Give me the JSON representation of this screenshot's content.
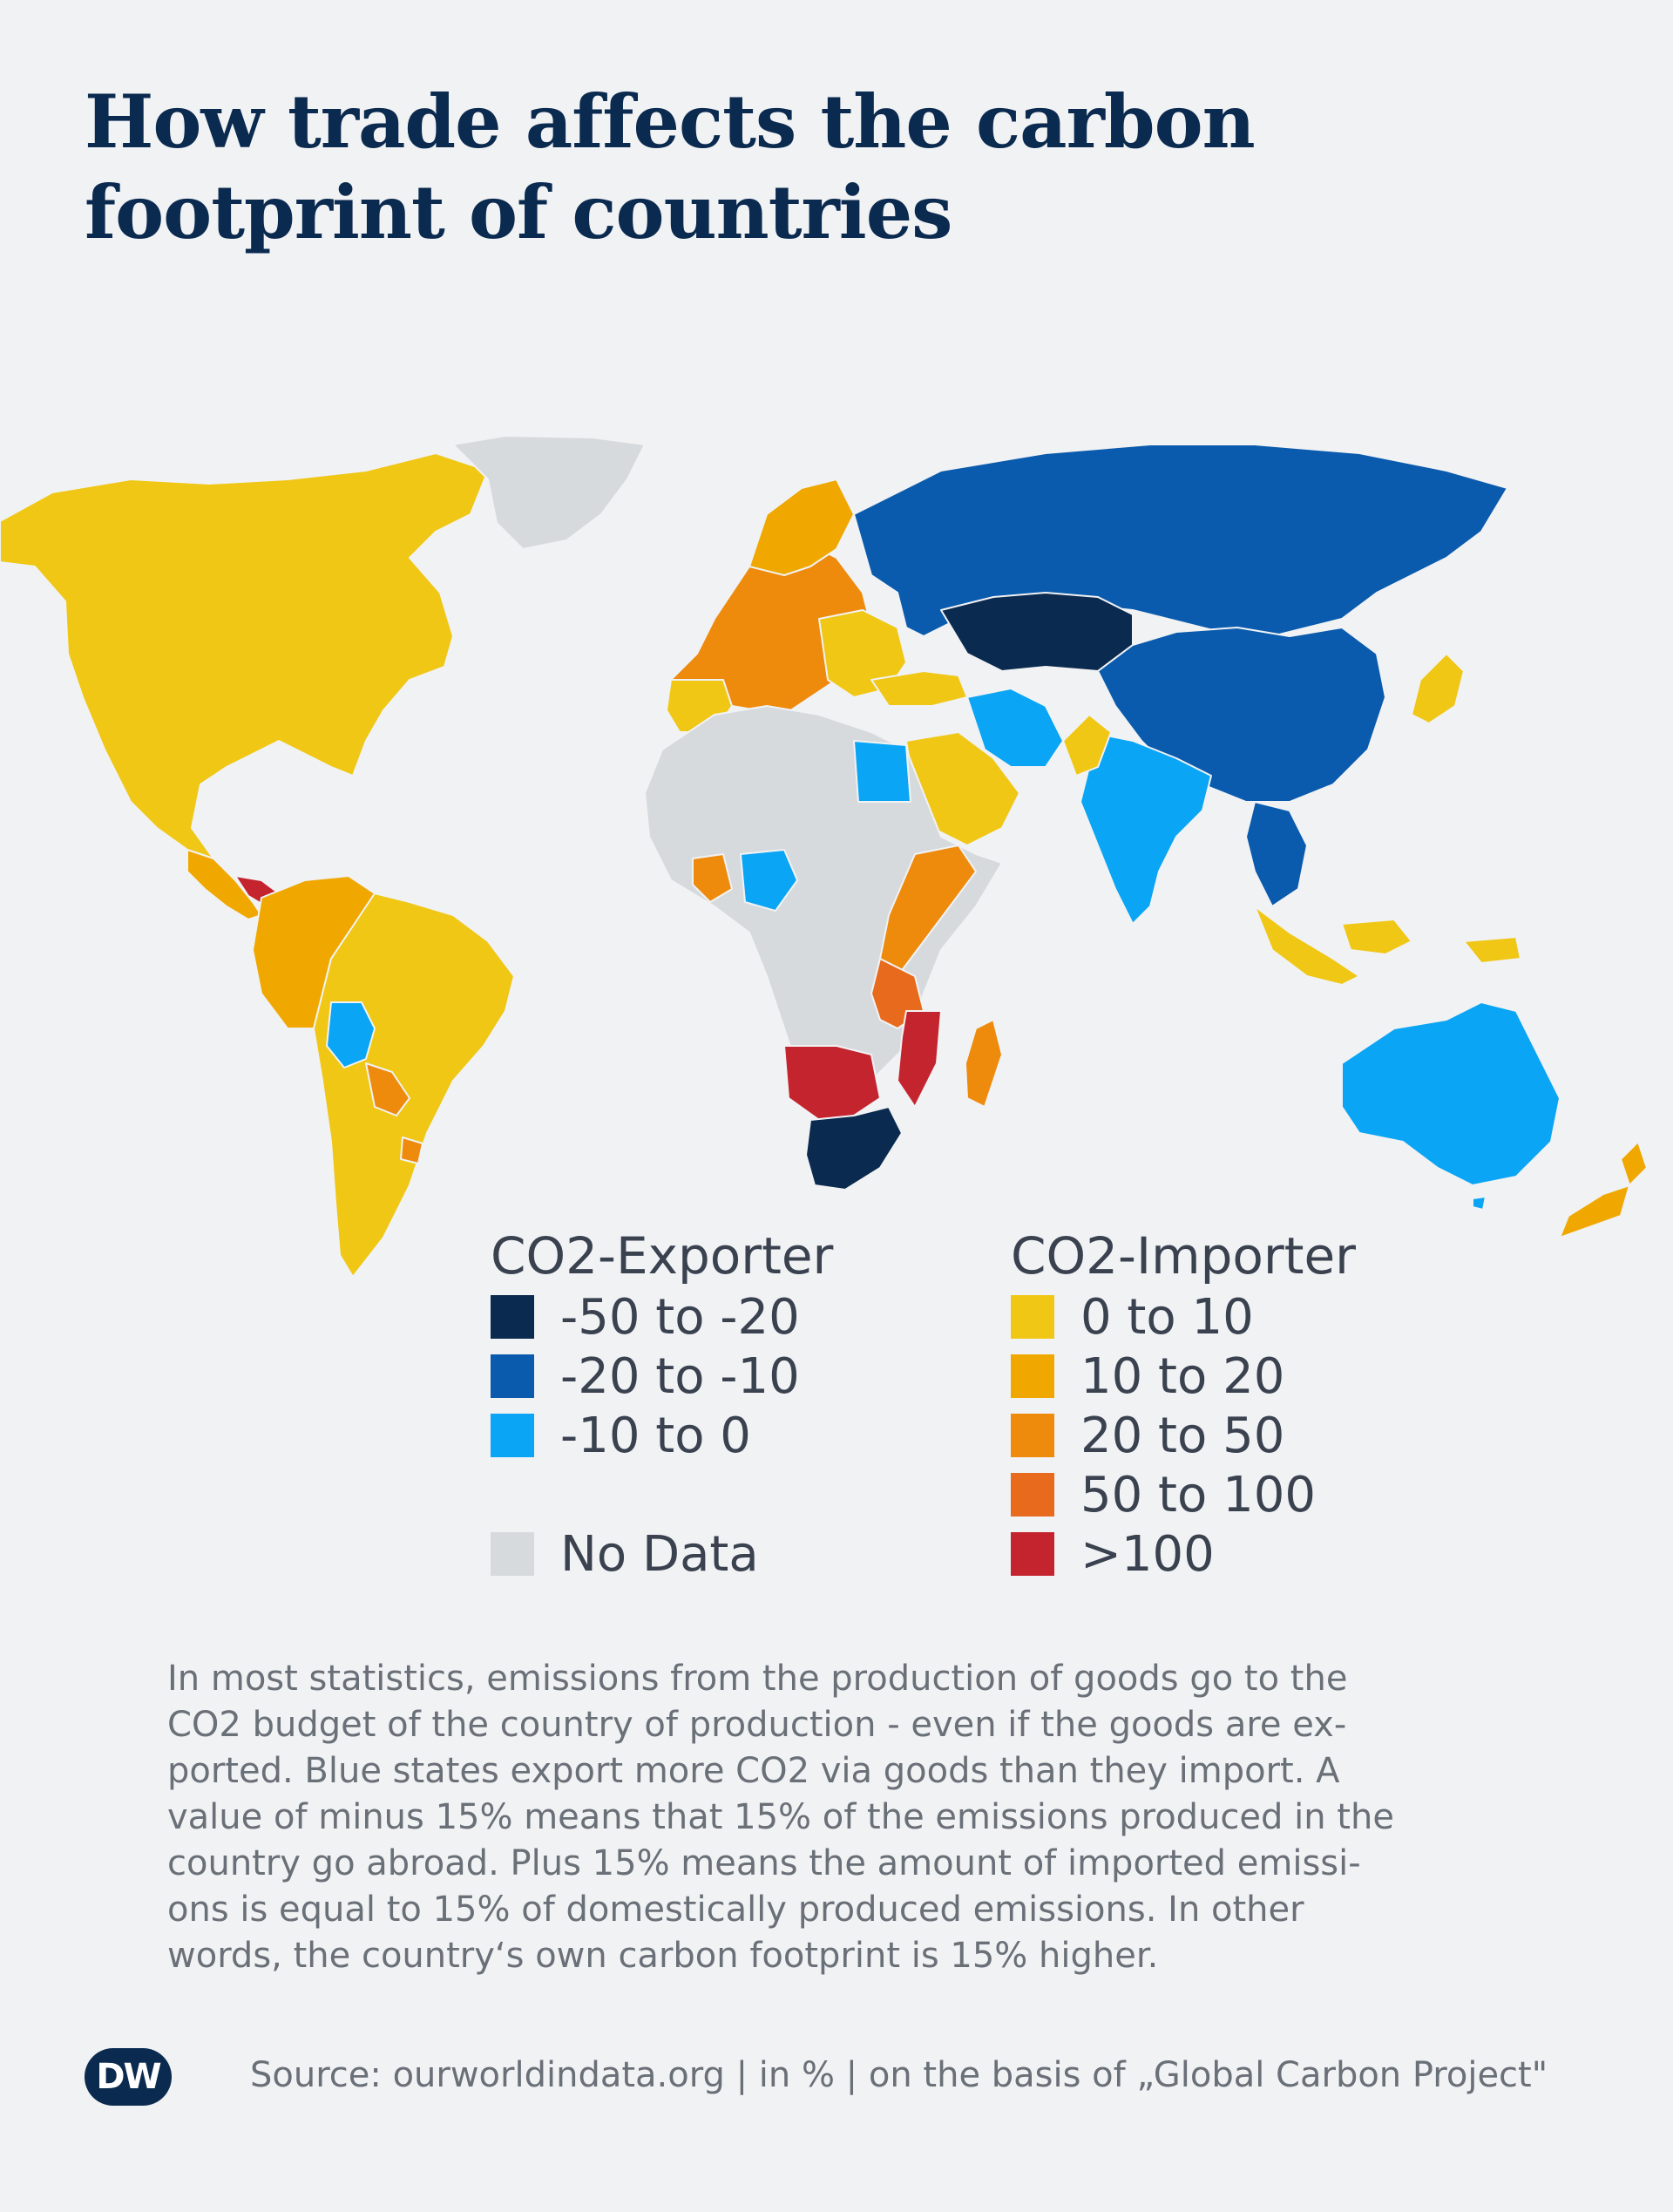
{
  "title": "How trade affects the carbon footprint of countries",
  "legend": {
    "exporter_heading": "CO2-Exporter",
    "importer_heading": "CO2-Importer",
    "exporter_items": [
      {
        "label": "-50 to -20",
        "color": "#0b2a4f"
      },
      {
        "label": "-20 to -10",
        "color": "#0a5bad"
      },
      {
        "label": "-10 to 0",
        "color": "#0aa5f4"
      }
    ],
    "no_data": {
      "label": "No Data",
      "color": "#d7dadd"
    },
    "importer_items": [
      {
        "label": "0 to 10",
        "color": "#f0c715"
      },
      {
        "label": "10 to 20",
        "color": "#f0a800"
      },
      {
        "label": "20 to 50",
        "color": "#ee8a0c"
      },
      {
        "label": "50 to 100",
        "color": "#e86a1c"
      },
      {
        "label": ">100",
        "color": "#c4242e"
      }
    ]
  },
  "note": "In most statistics, emissions from the production of goods go to the\nCO2 budget of the country of production - even if the goods are ex-\nported. Blue states export more CO2 via goods than they import. A\nvalue of minus 15% means that 15% of the emissions produced in the\ncountry go abroad. Plus 15% means the amount of imported emissi-\nons is equal to 15% of domestically produced emissions. In other\nwords, the country‘s own carbon footprint is 15% higher.",
  "footer": {
    "logo_text": "DW",
    "source": "Source: ourworldindata.org | in % | on the basis of „Global Carbon Project\""
  },
  "map": {
    "regions": [
      {
        "name": "North America",
        "category": "0 to 10",
        "color": "#f0c715"
      },
      {
        "name": "Greenland",
        "category": "No Data",
        "color": "#d7dadd"
      },
      {
        "name": "Central America",
        "category": "10 to 20",
        "color": "#f0a800"
      },
      {
        "name": "Panama",
        "category": ">100",
        "color": "#c4242e"
      },
      {
        "name": "Brazil / South America",
        "category": "0 to 10",
        "color": "#f0c715"
      },
      {
        "name": "Colombia / Venezuela / Peru",
        "category": "10 to 20",
        "color": "#f0a800"
      },
      {
        "name": "Bolivia",
        "category": "-10 to 0",
        "color": "#0aa5f4"
      },
      {
        "name": "Paraguay",
        "category": "20 to 50",
        "color": "#ee8a0c"
      },
      {
        "name": "Western Europe",
        "category": "20 to 50",
        "color": "#ee8a0c"
      },
      {
        "name": "Russia",
        "category": "-20 to -10",
        "color": "#0a5bad"
      },
      {
        "name": "Kazakhstan",
        "category": "-50 to -20",
        "color": "#0b2a4f"
      },
      {
        "name": "China",
        "category": "-20 to -10",
        "color": "#0a5bad"
      },
      {
        "name": "India",
        "category": "-10 to 0",
        "color": "#0aa5f4"
      },
      {
        "name": "Iran",
        "category": "-10 to 0",
        "color": "#0aa5f4"
      },
      {
        "name": "Saudi Arabia",
        "category": "0 to 10",
        "color": "#f0c715"
      },
      {
        "name": "Egypt",
        "category": "-10 to 0",
        "color": "#0aa5f4"
      },
      {
        "name": "Nigeria",
        "category": "-10 to 0",
        "color": "#0aa5f4"
      },
      {
        "name": "North & Central Africa",
        "category": "No Data",
        "color": "#d7dadd"
      },
      {
        "name": "East Africa",
        "category": "20 to 50",
        "color": "#ee8a0c"
      },
      {
        "name": "Mozambique / Malawi",
        "category": ">100",
        "color": "#c4242e"
      },
      {
        "name": "Namibia / Botswana",
        "category": ">100",
        "color": "#c4242e"
      },
      {
        "name": "South Africa",
        "category": "-50 to -20",
        "color": "#0b2a4f"
      },
      {
        "name": "Madagascar",
        "category": "20 to 50",
        "color": "#ee8a0c"
      },
      {
        "name": "Japan",
        "category": "0 to 10",
        "color": "#f0c715"
      },
      {
        "name": "Indonesia",
        "category": "0 to 10",
        "color": "#f0c715"
      },
      {
        "name": "Australia",
        "category": "-10 to 0",
        "color": "#0aa5f4"
      },
      {
        "name": "New Zealand",
        "category": "10 to 20",
        "color": "#f0a800"
      }
    ]
  }
}
